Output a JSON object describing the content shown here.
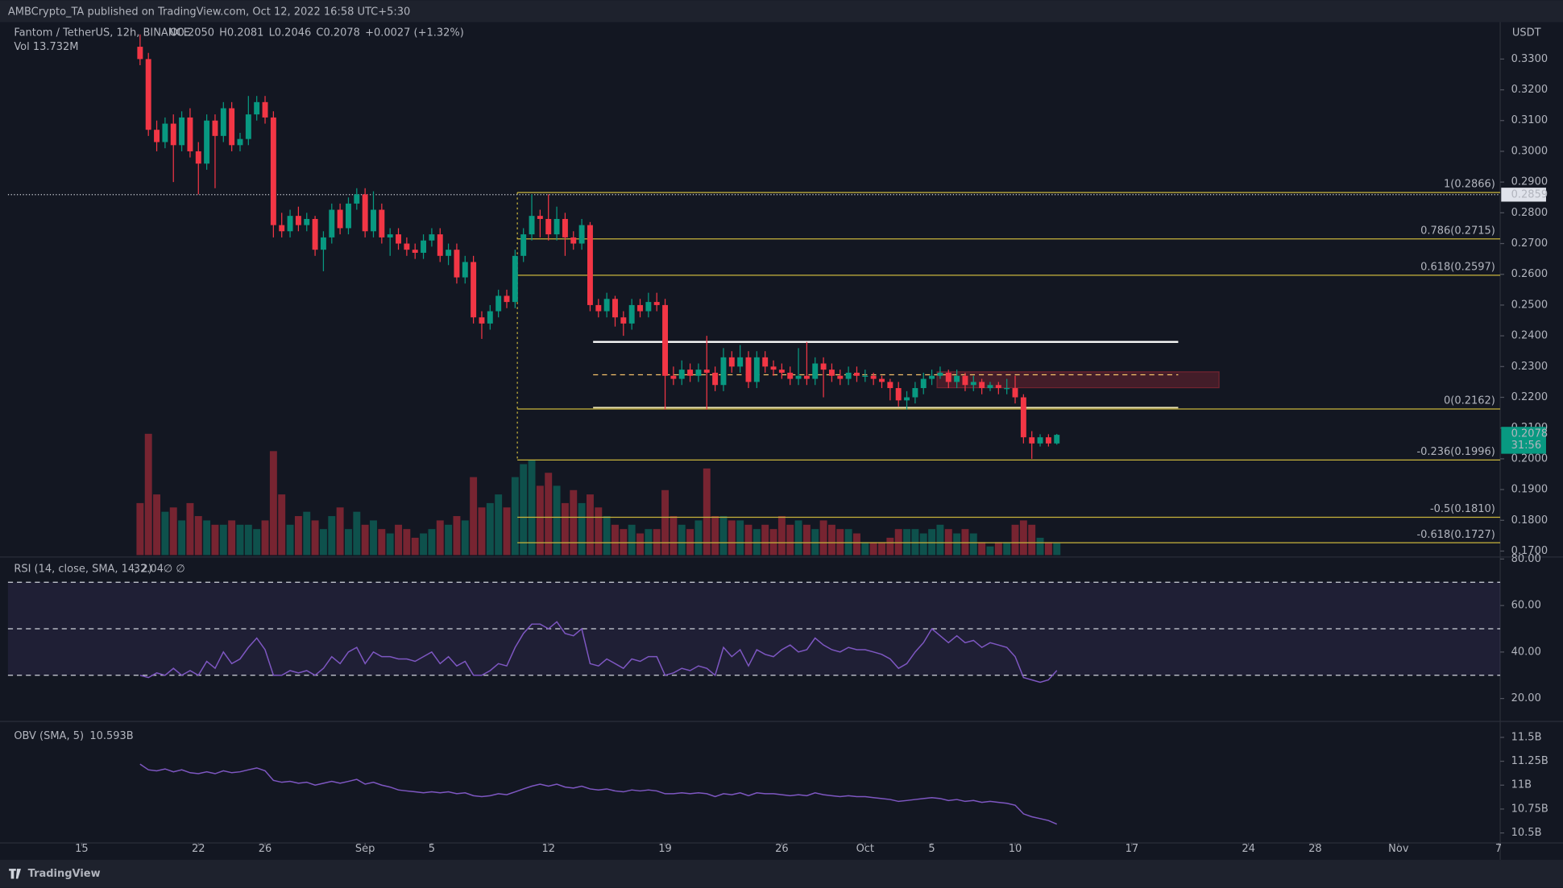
{
  "chart_data": {
    "type": "candlestick",
    "publisher": "AMBCrypto_TA published on TradingView.com, Oct 12, 2022 16:58 UTC+5:30",
    "symbol": "Fantom / TetherUS, 12h, BINANCE",
    "ohlc_text": [
      "O0.2050",
      "H0.2081",
      "L0.2046",
      "C0.2078",
      "+0.0027 (+1.32%)"
    ],
    "vol_title": "Vol",
    "vol_value": "13.732M",
    "currency": "USDT",
    "footer": "TradingView",
    "xlim": [
      -8.85,
      170.2
    ],
    "xticks": [
      {
        "value": 0,
        "label": "15"
      },
      {
        "value": 14,
        "label": "22"
      },
      {
        "value": 22,
        "label": "26"
      },
      {
        "value": 34,
        "label": "Sep"
      },
      {
        "value": 42,
        "label": "5"
      },
      {
        "value": 56,
        "label": "12"
      },
      {
        "value": 70,
        "label": "19"
      },
      {
        "value": 84,
        "label": "26"
      },
      {
        "value": 94,
        "label": "Oct"
      },
      {
        "value": 102,
        "label": "5"
      },
      {
        "value": 112,
        "label": "10"
      },
      {
        "value": 126,
        "label": "17"
      },
      {
        "value": 140,
        "label": "24"
      },
      {
        "value": 148,
        "label": "28"
      },
      {
        "value": 158,
        "label": "Nov"
      },
      {
        "value": 170,
        "label": "7"
      }
    ],
    "ylim": [
      0.1687,
      0.342
    ],
    "yticks": [
      {
        "value": 0.33,
        "label": "0.3300"
      },
      {
        "value": 0.32,
        "label": "0.3200"
      },
      {
        "value": 0.31,
        "label": "0.3100"
      },
      {
        "value": 0.3,
        "label": "0.3000"
      },
      {
        "value": 0.29,
        "label": "0.2900"
      },
      {
        "value": 0.28,
        "label": "0.2800"
      },
      {
        "value": 0.27,
        "label": "0.2700"
      },
      {
        "value": 0.26,
        "label": "0.2600"
      },
      {
        "value": 0.25,
        "label": "0.2500"
      },
      {
        "value": 0.24,
        "label": "0.2400"
      },
      {
        "value": 0.23,
        "label": "0.2300"
      },
      {
        "value": 0.22,
        "label": "0.2200"
      },
      {
        "value": 0.21,
        "label": "0.2100"
      },
      {
        "value": 0.2,
        "label": "0.2000"
      },
      {
        "value": 0.19,
        "label": "0.1900"
      },
      {
        "value": 0.18,
        "label": "0.1800"
      },
      {
        "value": 0.17,
        "label": "0.1700"
      }
    ],
    "up_color": "#089981",
    "down_color": "#f23645",
    "x": [
      7,
      8,
      9,
      10,
      11,
      12,
      13,
      14,
      15,
      16,
      17,
      18,
      19,
      20,
      21,
      22,
      23,
      24,
      25,
      26,
      27,
      28,
      29,
      30,
      31,
      32,
      33,
      34,
      35,
      36,
      37,
      38,
      39,
      40,
      41,
      42,
      43,
      44,
      45,
      46,
      47,
      48,
      49,
      50,
      51,
      52,
      53,
      54,
      55,
      56,
      57,
      58,
      59,
      60,
      61,
      62,
      63,
      64,
      65,
      66,
      67,
      68,
      69,
      70,
      71,
      72,
      73,
      74,
      75,
      76,
      77,
      78,
      79,
      80,
      81,
      82,
      83,
      84,
      85,
      86,
      87,
      88,
      89,
      90,
      91,
      92,
      93,
      94,
      95,
      96,
      97,
      98,
      99,
      100,
      101,
      102,
      103,
      104,
      105,
      106,
      107,
      108,
      109,
      110,
      111,
      112,
      113,
      114,
      115,
      116,
      117
    ],
    "ohlc": [
      [
        0.334,
        0.338,
        0.328,
        0.33
      ],
      [
        0.33,
        0.332,
        0.305,
        0.307
      ],
      [
        0.307,
        0.31,
        0.3,
        0.303
      ],
      [
        0.303,
        0.311,
        0.301,
        0.309
      ],
      [
        0.309,
        0.312,
        0.29,
        0.302
      ],
      [
        0.302,
        0.313,
        0.3,
        0.311
      ],
      [
        0.311,
        0.314,
        0.298,
        0.3
      ],
      [
        0.3,
        0.303,
        0.286,
        0.296
      ],
      [
        0.296,
        0.312,
        0.294,
        0.31
      ],
      [
        0.31,
        0.312,
        0.288,
        0.305
      ],
      [
        0.305,
        0.316,
        0.303,
        0.314
      ],
      [
        0.314,
        0.316,
        0.3,
        0.302
      ],
      [
        0.302,
        0.306,
        0.3,
        0.304
      ],
      [
        0.304,
        0.318,
        0.302,
        0.312
      ],
      [
        0.312,
        0.318,
        0.31,
        0.316
      ],
      [
        0.316,
        0.318,
        0.309,
        0.311
      ],
      [
        0.311,
        0.313,
        0.272,
        0.276
      ],
      [
        0.276,
        0.28,
        0.272,
        0.274
      ],
      [
        0.274,
        0.281,
        0.272,
        0.279
      ],
      [
        0.279,
        0.282,
        0.274,
        0.276
      ],
      [
        0.276,
        0.28,
        0.274,
        0.278
      ],
      [
        0.278,
        0.279,
        0.266,
        0.268
      ],
      [
        0.268,
        0.274,
        0.261,
        0.272
      ],
      [
        0.272,
        0.283,
        0.27,
        0.281
      ],
      [
        0.281,
        0.283,
        0.273,
        0.275
      ],
      [
        0.275,
        0.285,
        0.273,
        0.283
      ],
      [
        0.283,
        0.288,
        0.281,
        0.286
      ],
      [
        0.286,
        0.288,
        0.272,
        0.274
      ],
      [
        0.274,
        0.287,
        0.272,
        0.281
      ],
      [
        0.281,
        0.283,
        0.27,
        0.272
      ],
      [
        0.272,
        0.275,
        0.266,
        0.273
      ],
      [
        0.273,
        0.275,
        0.268,
        0.27
      ],
      [
        0.27,
        0.272,
        0.266,
        0.268
      ],
      [
        0.268,
        0.27,
        0.265,
        0.267
      ],
      [
        0.267,
        0.273,
        0.265,
        0.271
      ],
      [
        0.271,
        0.275,
        0.269,
        0.273
      ],
      [
        0.273,
        0.275,
        0.264,
        0.266
      ],
      [
        0.266,
        0.27,
        0.263,
        0.268
      ],
      [
        0.268,
        0.27,
        0.257,
        0.259
      ],
      [
        0.259,
        0.266,
        0.257,
        0.264
      ],
      [
        0.264,
        0.266,
        0.244,
        0.246
      ],
      [
        0.246,
        0.248,
        0.239,
        0.244
      ],
      [
        0.244,
        0.25,
        0.242,
        0.248
      ],
      [
        0.248,
        0.255,
        0.246,
        0.253
      ],
      [
        0.253,
        0.255,
        0.249,
        0.251
      ],
      [
        0.251,
        0.268,
        0.249,
        0.266
      ],
      [
        0.266,
        0.275,
        0.264,
        0.273
      ],
      [
        0.273,
        0.286,
        0.271,
        0.279
      ],
      [
        0.279,
        0.281,
        0.272,
        0.278
      ],
      [
        0.278,
        0.286,
        0.271,
        0.273
      ],
      [
        0.273,
        0.282,
        0.271,
        0.278
      ],
      [
        0.278,
        0.28,
        0.266,
        0.272
      ],
      [
        0.272,
        0.274,
        0.268,
        0.27
      ],
      [
        0.27,
        0.278,
        0.268,
        0.276
      ],
      [
        0.276,
        0.277,
        0.248,
        0.25
      ],
      [
        0.25,
        0.252,
        0.246,
        0.248
      ],
      [
        0.248,
        0.254,
        0.246,
        0.252
      ],
      [
        0.252,
        0.253,
        0.243,
        0.246
      ],
      [
        0.246,
        0.248,
        0.24,
        0.244
      ],
      [
        0.244,
        0.252,
        0.242,
        0.25
      ],
      [
        0.25,
        0.252,
        0.246,
        0.248
      ],
      [
        0.248,
        0.254,
        0.246,
        0.251
      ],
      [
        0.251,
        0.254,
        0.248,
        0.25
      ],
      [
        0.25,
        0.252,
        0.216,
        0.227
      ],
      [
        0.227,
        0.23,
        0.224,
        0.226
      ],
      [
        0.226,
        0.232,
        0.224,
        0.229
      ],
      [
        0.229,
        0.231,
        0.225,
        0.227
      ],
      [
        0.227,
        0.231,
        0.225,
        0.229
      ],
      [
        0.229,
        0.24,
        0.216,
        0.228
      ],
      [
        0.228,
        0.23,
        0.222,
        0.224
      ],
      [
        0.224,
        0.236,
        0.222,
        0.233
      ],
      [
        0.233,
        0.235,
        0.228,
        0.23
      ],
      [
        0.23,
        0.237,
        0.228,
        0.233
      ],
      [
        0.233,
        0.235,
        0.223,
        0.225
      ],
      [
        0.225,
        0.235,
        0.223,
        0.233
      ],
      [
        0.233,
        0.235,
        0.228,
        0.23
      ],
      [
        0.23,
        0.232,
        0.227,
        0.229
      ],
      [
        0.229,
        0.231,
        0.226,
        0.228
      ],
      [
        0.228,
        0.23,
        0.224,
        0.226
      ],
      [
        0.226,
        0.236,
        0.224,
        0.227
      ],
      [
        0.227,
        0.238,
        0.224,
        0.226
      ],
      [
        0.226,
        0.233,
        0.224,
        0.231
      ],
      [
        0.231,
        0.233,
        0.22,
        0.229
      ],
      [
        0.229,
        0.231,
        0.225,
        0.227
      ],
      [
        0.227,
        0.229,
        0.224,
        0.226
      ],
      [
        0.226,
        0.23,
        0.224,
        0.228
      ],
      [
        0.228,
        0.23,
        0.225,
        0.227
      ],
      [
        0.227,
        0.229,
        0.225,
        0.227
      ],
      [
        0.227,
        0.228,
        0.224,
        0.226
      ],
      [
        0.226,
        0.227,
        0.223,
        0.225
      ],
      [
        0.225,
        0.226,
        0.219,
        0.223
      ],
      [
        0.223,
        0.225,
        0.217,
        0.219
      ],
      [
        0.219,
        0.222,
        0.216,
        0.22
      ],
      [
        0.22,
        0.225,
        0.218,
        0.223
      ],
      [
        0.223,
        0.228,
        0.221,
        0.226
      ],
      [
        0.226,
        0.229,
        0.224,
        0.227
      ],
      [
        0.227,
        0.23,
        0.226,
        0.228
      ],
      [
        0.228,
        0.229,
        0.223,
        0.225
      ],
      [
        0.225,
        0.229,
        0.223,
        0.227
      ],
      [
        0.227,
        0.228,
        0.222,
        0.224
      ],
      [
        0.224,
        0.227,
        0.222,
        0.225
      ],
      [
        0.225,
        0.226,
        0.221,
        0.223
      ],
      [
        0.223,
        0.225,
        0.222,
        0.224
      ],
      [
        0.224,
        0.225,
        0.221,
        0.223
      ],
      [
        0.223,
        0.226,
        0.221,
        0.223
      ],
      [
        0.223,
        0.227,
        0.218,
        0.22
      ],
      [
        0.22,
        0.221,
        0.205,
        0.207
      ],
      [
        0.207,
        0.209,
        0.2,
        0.205
      ],
      [
        0.205,
        0.208,
        0.204,
        0.207
      ],
      [
        0.207,
        0.208,
        0.204,
        0.205
      ],
      [
        0.205,
        0.2081,
        0.2046,
        0.2078
      ]
    ],
    "volume": [
      60,
      140,
      70,
      50,
      55,
      40,
      60,
      45,
      40,
      35,
      35,
      40,
      35,
      35,
      30,
      40,
      120,
      70,
      35,
      45,
      50,
      40,
      30,
      45,
      55,
      30,
      50,
      35,
      40,
      30,
      25,
      35,
      30,
      20,
      25,
      30,
      40,
      35,
      45,
      40,
      90,
      55,
      60,
      70,
      55,
      90,
      105,
      110,
      80,
      95,
      80,
      60,
      75,
      60,
      70,
      55,
      45,
      35,
      30,
      35,
      25,
      30,
      30,
      75,
      45,
      35,
      30,
      40,
      100,
      45,
      45,
      40,
      40,
      35,
      30,
      35,
      30,
      45,
      35,
      40,
      35,
      30,
      40,
      35,
      30,
      30,
      25,
      15,
      15,
      15,
      20,
      30,
      30,
      30,
      25,
      30,
      35,
      30,
      25,
      30,
      25,
      15,
      10,
      15,
      15,
      35,
      40,
      35,
      20,
      15,
      13.732
    ],
    "vol_ylim": [
      0,
      184
    ],
    "fib": [
      {
        "value": 0.2866,
        "label": "1(0.2866)"
      },
      {
        "value": 0.2715,
        "label": "0.786(0.2715)"
      },
      {
        "value": 0.2597,
        "label": "0.618(0.2597)"
      },
      {
        "value": 0.2162,
        "label": "0(0.2162)"
      },
      {
        "value": 0.1996,
        "label": "-0.236(0.1996)"
      },
      {
        "value": 0.181,
        "label": "-0.5(0.1810)"
      },
      {
        "value": 0.1727,
        "label": "-0.618(0.1727)"
      }
    ],
    "price_line": {
      "value": 0.2859,
      "label": "0.2859"
    },
    "last_price": {
      "value": 0.2078,
      "label": "0.2078",
      "countdown": "31:56"
    },
    "rsi": {
      "title": "RSI (14, close, SMA, 14, 2)",
      "value_label": "32.04",
      "extra": "∅ ∅",
      "color": "#7e57c2",
      "ylim": [
        11,
        80
      ],
      "levels": [
        70,
        50,
        30
      ],
      "yticks": [
        {
          "value": 80,
          "label": "80.00"
        },
        {
          "value": 60,
          "label": "60.00"
        },
        {
          "value": 40,
          "label": "40.00"
        },
        {
          "value": 20,
          "label": "20.00"
        }
      ],
      "values": [
        30,
        29,
        31,
        30,
        33,
        30,
        32,
        30,
        36,
        33,
        40,
        35,
        37,
        42,
        46,
        41,
        30,
        30,
        32,
        31,
        32,
        30,
        33,
        38,
        35,
        40,
        42,
        35,
        40,
        38,
        38,
        37,
        37,
        36,
        38,
        40,
        35,
        38,
        34,
        36,
        30,
        30,
        32,
        35,
        34,
        42,
        48,
        52,
        52,
        50,
        53,
        48,
        47,
        50,
        35,
        34,
        37,
        35,
        33,
        37,
        36,
        38,
        38,
        30,
        31,
        33,
        32,
        34,
        33,
        30,
        42,
        38,
        41,
        34,
        41,
        39,
        38,
        41,
        43,
        40,
        41,
        46,
        43,
        41,
        40,
        42,
        41,
        41,
        40,
        39,
        37,
        33,
        35,
        40,
        44,
        50,
        47,
        44,
        47,
        44,
        45,
        42,
        44,
        43,
        42,
        38,
        29,
        28,
        27,
        28,
        32.04
      ]
    },
    "obv": {
      "title": "OBV (SMA, 5)",
      "value_label": "10.593B",
      "color": "#7e57c2",
      "ylim": [
        10.406,
        11.646
      ],
      "yticks": [
        {
          "value": 11.5,
          "label": "11.5B"
        },
        {
          "value": 11.25,
          "label": "11.25B"
        },
        {
          "value": 11,
          "label": "11B"
        },
        {
          "value": 10.75,
          "label": "10.75B"
        },
        {
          "value": 10.5,
          "label": "10.5B"
        }
      ],
      "values": [
        11.22,
        11.16,
        11.15,
        11.17,
        11.14,
        11.16,
        11.13,
        11.12,
        11.14,
        11.12,
        11.15,
        11.13,
        11.14,
        11.16,
        11.18,
        11.15,
        11.05,
        11.03,
        11.04,
        11.02,
        11.03,
        11.0,
        11.02,
        11.04,
        11.02,
        11.04,
        11.06,
        11.01,
        11.03,
        11.0,
        10.98,
        10.95,
        10.94,
        10.93,
        10.92,
        10.93,
        10.92,
        10.93,
        10.91,
        10.92,
        10.89,
        10.88,
        10.89,
        10.91,
        10.9,
        10.93,
        10.96,
        10.99,
        11.01,
        10.99,
        11.01,
        10.98,
        10.97,
        10.99,
        10.96,
        10.95,
        10.96,
        10.94,
        10.93,
        10.95,
        10.94,
        10.95,
        10.94,
        10.91,
        10.91,
        10.92,
        10.91,
        10.92,
        10.91,
        10.88,
        10.91,
        10.9,
        10.92,
        10.89,
        10.92,
        10.91,
        10.91,
        10.9,
        10.89,
        10.9,
        10.89,
        10.92,
        10.9,
        10.89,
        10.88,
        10.89,
        10.88,
        10.88,
        10.87,
        10.86,
        10.85,
        10.83,
        10.84,
        10.85,
        10.86,
        10.87,
        10.86,
        10.84,
        10.85,
        10.83,
        10.84,
        10.82,
        10.83,
        10.82,
        10.81,
        10.79,
        10.7,
        10.67,
        10.65,
        10.63,
        10.593
      ]
    }
  }
}
